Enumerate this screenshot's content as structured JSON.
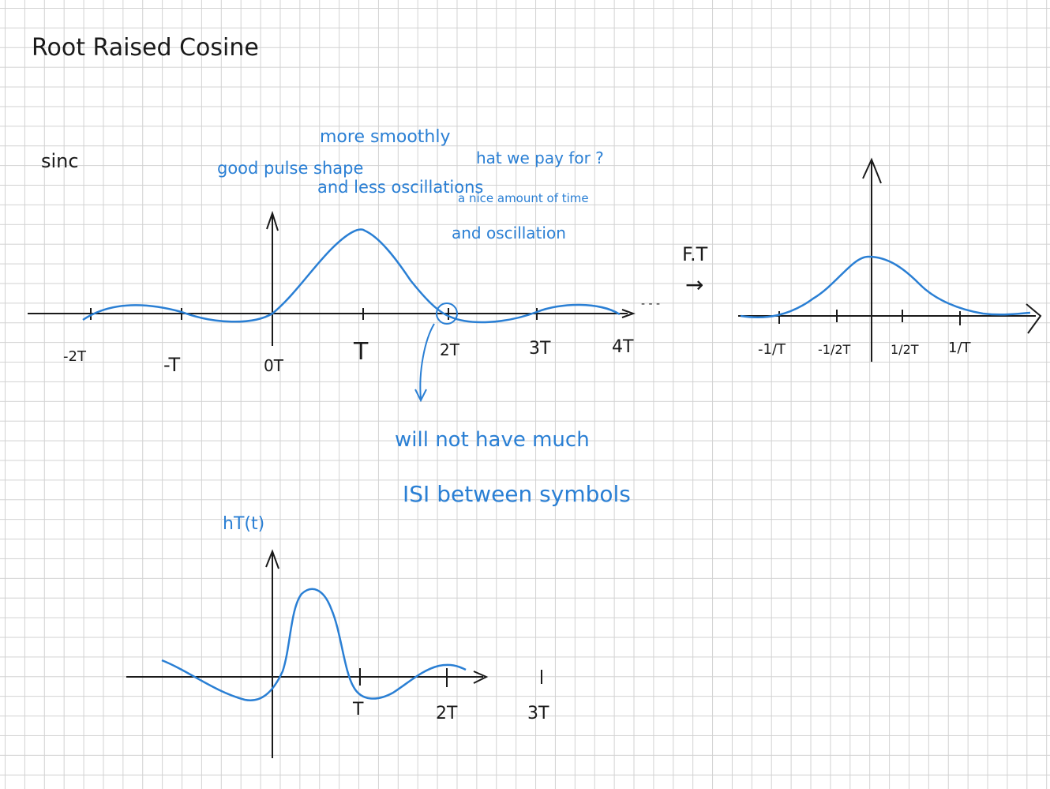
{
  "title": "Root   Raised  Cosine",
  "sinc_label": "sinc",
  "notes": {
    "more_smoothly": "more  smoothly",
    "good_pulse_shape": "good pulse shape",
    "and_less_oscillations": "and  less  oscillations",
    "what_we_pay_for": "hat  we  pay  for ?",
    "nice_amount_of_time": "a nice amount of time",
    "and_oscillation": "and  oscillation",
    "will_not_have_much": "will  not  have  much",
    "isi_between_symbols": "ISI  between  symbols"
  },
  "top_axis": {
    "ticks": [
      "-2T",
      "-T",
      "0T",
      "T",
      "2T",
      "3T",
      "4T"
    ],
    "continuation": "- - -"
  },
  "ft": {
    "label": "F.T",
    "arrow": "→",
    "ticks": [
      "-1/T",
      "-1/2T",
      "1/2T",
      "1/T"
    ]
  },
  "bottom_plot": {
    "label": "hT(t)",
    "ticks": [
      "T",
      "2T",
      "3T"
    ]
  },
  "colors": {
    "ink_black": "#1a1a1a",
    "ink_blue": "#2a7fd4",
    "grid": "#d2d2d2"
  }
}
